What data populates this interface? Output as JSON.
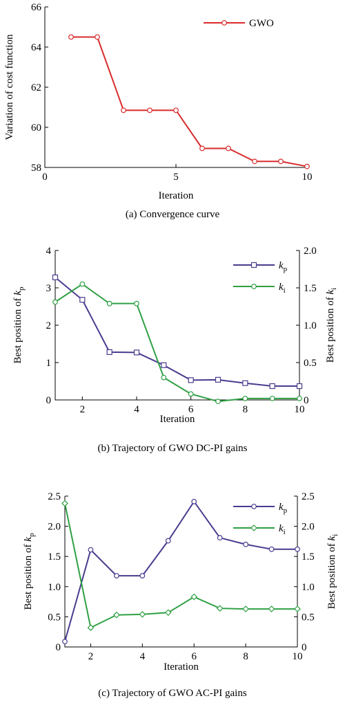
{
  "colors": {
    "red": "#d92b2b",
    "purple": "#4b3a8f",
    "green": "#2ea043"
  },
  "chart_data": [
    {
      "type": "line",
      "caption": "(a) Convergence curve",
      "xlabel": "Iteration",
      "ylabel": "Variation of cost function",
      "xlim": [
        0,
        10
      ],
      "ylim": [
        58,
        66
      ],
      "xticks": [
        "0",
        "5",
        "10"
      ],
      "yticks": [
        "58",
        "60",
        "62",
        "64",
        "66"
      ],
      "legend_position": "top-right",
      "series": [
        {
          "name": "GWO",
          "marker": "circle",
          "x": [
            1,
            2,
            3,
            4,
            5,
            6,
            7,
            8,
            9,
            10
          ],
          "values": [
            64.5,
            64.5,
            60.85,
            60.85,
            60.85,
            58.95,
            58.95,
            58.3,
            58.3,
            58.05
          ]
        }
      ]
    },
    {
      "type": "line",
      "caption": "(b) Trajectory of GWO DC-PI gains",
      "xlabel": "Iteration",
      "ylabel_left": "Best position of k_p",
      "ylabel_right": "Best position of k_i",
      "xlim": [
        1,
        10
      ],
      "ylim_left": [
        0,
        4
      ],
      "ylim_right": [
        0,
        2
      ],
      "xticks": [
        "2",
        "4",
        "6",
        "8",
        "10"
      ],
      "yticks_left": [
        "0",
        "1",
        "2",
        "3",
        "4"
      ],
      "yticks_right": [
        "0",
        "0.5",
        "1.0",
        "1.5",
        "2.0"
      ],
      "legend_position": "top-right",
      "series": [
        {
          "name": "kp",
          "axis": "left",
          "marker": "square",
          "x": [
            1,
            2,
            3,
            4,
            5,
            6,
            7,
            8,
            9,
            10
          ],
          "values": [
            3.28,
            2.68,
            1.28,
            1.27,
            0.93,
            0.53,
            0.54,
            0.45,
            0.37,
            0.37
          ]
        },
        {
          "name": "ki",
          "axis": "right",
          "marker": "circle",
          "x": [
            1,
            2,
            3,
            4,
            5,
            6,
            7,
            8,
            9,
            10
          ],
          "values": [
            1.31,
            1.55,
            1.29,
            1.29,
            0.3,
            0.08,
            -0.02,
            0.02,
            0.02,
            0.02
          ]
        }
      ]
    },
    {
      "type": "line",
      "caption": "(c) Trajectory of GWO AC-PI gains",
      "xlabel": "Iteration",
      "ylabel_left": "Best position of k_p",
      "ylabel_right": "Best position of k_i",
      "xlim": [
        1,
        10
      ],
      "ylim_left": [
        0,
        2.5
      ],
      "ylim_right": [
        0,
        2.5
      ],
      "xticks": [
        "2",
        "4",
        "6",
        "8",
        "10"
      ],
      "yticks_left": [
        "0",
        "0.5",
        "1.0",
        "1.5",
        "2.0",
        "2.5"
      ],
      "yticks_right": [
        "0",
        "0.5",
        "1.0",
        "1.5",
        "2.0",
        "2.5"
      ],
      "legend_position": "top-right",
      "series": [
        {
          "name": "kp",
          "axis": "left",
          "marker": "circle",
          "x": [
            1,
            2,
            3,
            4,
            5,
            6,
            7,
            8,
            9,
            10
          ],
          "values": [
            0.09,
            1.61,
            1.18,
            1.18,
            1.76,
            2.41,
            1.81,
            1.7,
            1.62,
            1.62
          ]
        },
        {
          "name": "ki",
          "axis": "right",
          "marker": "diamond",
          "x": [
            1,
            2,
            3,
            4,
            5,
            6,
            7,
            8,
            9,
            10
          ],
          "values": [
            2.38,
            0.32,
            0.53,
            0.54,
            0.57,
            0.83,
            0.64,
            0.63,
            0.63,
            0.63
          ]
        }
      ]
    }
  ]
}
